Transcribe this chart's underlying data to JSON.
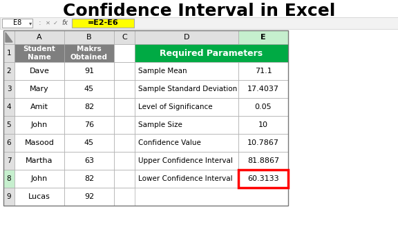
{
  "title": "Confidence Interval in Excel",
  "formula_bar_cell": "E8",
  "formula_bar_formula": "=E2-E6",
  "col_headers": [
    "A",
    "B",
    "C",
    "D",
    "E"
  ],
  "left_table": {
    "header": [
      "Student\nName",
      "Makrs\nObtained"
    ],
    "rows": [
      [
        "Dave",
        "91"
      ],
      [
        "Mary",
        "45"
      ],
      [
        "Amit",
        "82"
      ],
      [
        "John",
        "76"
      ],
      [
        "Masood",
        "45"
      ],
      [
        "Martha",
        "63"
      ],
      [
        "John",
        "82"
      ],
      [
        "Lucas",
        "92"
      ]
    ],
    "header_bg": "#7F7F7F",
    "header_fg": "#FFFFFF",
    "row_bg": "#FFFFFF",
    "row_fg": "#000000"
  },
  "right_table": {
    "header": "Required Parameters",
    "header_bg": "#00AA44",
    "header_fg": "#FFFFFF",
    "params": [
      [
        "Sample Mean",
        "71.1"
      ],
      [
        "Sample Standard Deviation",
        "17.4037"
      ],
      [
        "Level of Significance",
        "0.05"
      ],
      [
        "Sample Size",
        "10"
      ],
      [
        "Confidence Value",
        "10.7867"
      ],
      [
        "Upper Confidence Interval",
        "81.8867"
      ],
      [
        "Lower Confidence Interval",
        "60.3133"
      ]
    ],
    "row_bg": "#FFFFFF",
    "row_fg": "#000000",
    "highlighted_row": 7,
    "highlight_border": "#FF0000"
  },
  "bg_color": "#FFFFFF",
  "grid_color": "#AAAAAA",
  "title_color": "#000000",
  "title_fontsize": 18,
  "formula_bar_bg": "#FFFF00",
  "col_header_bg": "#E0E0E0",
  "col_header_fg": "#000000",
  "row_header_bg": "#E0E0E0",
  "row_header_fg": "#000000",
  "selected_col_bg": "#C6EFCE",
  "selected_row_bg": "#C6EFCE"
}
